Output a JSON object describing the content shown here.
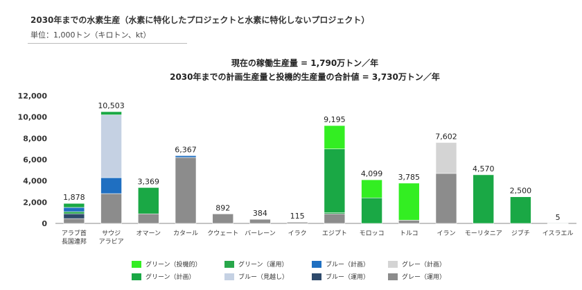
{
  "header": {
    "title": "2030年までの水素生産（水素に特化したプロジェクトと水素に特化しないプロジェクト）",
    "unit": "単位：1,000トン（キロトン、kt）"
  },
  "summary": {
    "line1": "現在の稼働生産量 = 1,790万トン／年",
    "line2": "2030年までの計画生産量と投機的生産量の合計値 = 3,730万トン／年"
  },
  "chart_data": {
    "type": "bar",
    "stacked": true,
    "title": "",
    "xlabel": "",
    "ylabel": "",
    "ylim": [
      0,
      12000
    ],
    "yticks": [
      "0",
      "2,000",
      "4,000",
      "6,000",
      "8,000",
      "10,000",
      "12,000"
    ],
    "grid": false,
    "legend_position": "bottom",
    "categories": [
      [
        "アラブ首",
        "長国連邦"
      ],
      [
        "サウジ",
        "アラビア"
      ],
      [
        "オマーン"
      ],
      [
        "カタール"
      ],
      [
        "クウェート"
      ],
      [
        "バーレーン"
      ],
      [
        "イラク"
      ],
      [
        "エジプト"
      ],
      [
        "モロッコ"
      ],
      [
        "トルコ"
      ],
      [
        "イラン"
      ],
      [
        "モーリタニア"
      ],
      [
        "ジブチ"
      ],
      [
        "イスラエル"
      ]
    ],
    "totals": [
      "1,878",
      "10,503",
      "3,369",
      "6,367",
      "892",
      "384",
      "115",
      "9,195",
      "4,099",
      "3,785",
      "7,602",
      "4,570",
      "2,500",
      "5"
    ],
    "series": [
      {
        "name": "グレー（運用）",
        "color": "#8c8c8c",
        "values": [
          450,
          2800,
          900,
          6200,
          892,
          384,
          115,
          900,
          0,
          300,
          4700,
          0,
          0,
          0
        ]
      },
      {
        "name": "ブルー（運用）",
        "color": "#2e4a6b",
        "values": [
          450,
          0,
          0,
          0,
          0,
          0,
          0,
          0,
          0,
          0,
          0,
          0,
          0,
          0
        ]
      },
      {
        "name": "グリーン（運用）",
        "color": "#27a74a",
        "values": [
          200,
          0,
          0,
          0,
          0,
          0,
          0,
          100,
          0,
          0,
          0,
          0,
          0,
          0
        ]
      },
      {
        "name": "ブルー（計画）",
        "color": "#1f6fc1",
        "values": [
          400,
          1500,
          0,
          167,
          0,
          0,
          0,
          0,
          0,
          0,
          0,
          0,
          0,
          0
        ]
      },
      {
        "name": "ブルー（見越し）",
        "color": "#c5d1e3",
        "values": [
          0,
          5900,
          0,
          0,
          0,
          0,
          0,
          0,
          0,
          0,
          0,
          0,
          0,
          0
        ]
      },
      {
        "name": "グレー（計画）",
        "color": "#d4d4d4",
        "values": [
          0,
          0,
          0,
          0,
          0,
          0,
          0,
          0,
          0,
          0,
          2902,
          0,
          0,
          0
        ]
      },
      {
        "name": "グリーン（計画）",
        "color": "#1aa845",
        "values": [
          378,
          303,
          2469,
          0,
          0,
          0,
          0,
          6000,
          2400,
          0,
          0,
          4570,
          2500,
          5
        ]
      },
      {
        "name": "グリーン（投機的）",
        "color": "#33ee22",
        "values": [
          0,
          0,
          0,
          0,
          0,
          0,
          0,
          2195,
          1699,
          3485,
          0,
          0,
          0,
          0
        ]
      }
    ]
  },
  "legend": {
    "items": [
      {
        "label": "グリーン（投機的）",
        "color": "#33ee22"
      },
      {
        "label": "グリーン（運用）",
        "color": "#27a74a"
      },
      {
        "label": "ブルー（計画）",
        "color": "#1f6fc1"
      },
      {
        "label": "グレー（計画）",
        "color": "#d4d4d4"
      },
      {
        "label": "グリーン（計画）",
        "color": "#1aa845"
      },
      {
        "label": "ブルー（見越し）",
        "color": "#c5d1e3"
      },
      {
        "label": "ブルー（運用）",
        "color": "#2e4a6b"
      },
      {
        "label": "グレー（運用）",
        "color": "#8c8c8c"
      }
    ]
  }
}
